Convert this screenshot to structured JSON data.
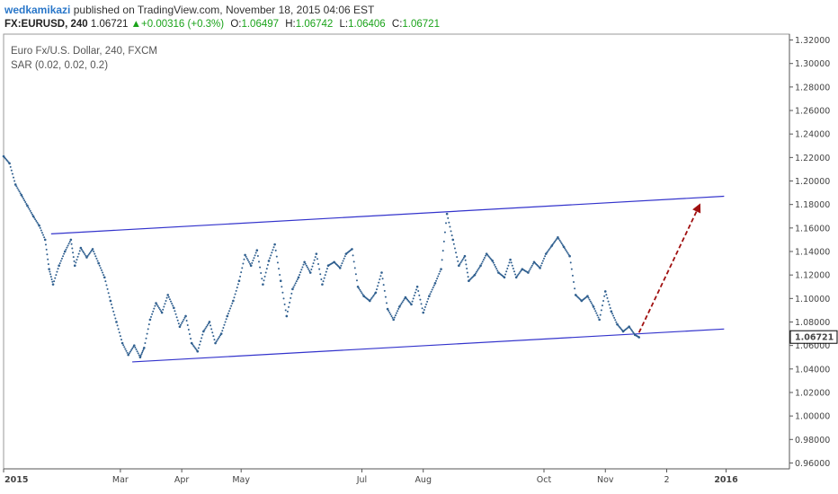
{
  "header": {
    "user": "wedkamikazi",
    "published_text": "published on TradingView.com, November 18, 2015 04:06 EST",
    "symbol": "FX:EURUSD, 240",
    "last": "1.06721",
    "change": "+0.00316 (+0.3%)",
    "o_label": "O:",
    "o_value": "1.06497",
    "h_label": "H:",
    "h_value": "1.06742",
    "l_label": "L:",
    "l_value": "1.06406",
    "c_label": "C:",
    "c_value": "1.06721"
  },
  "legend": {
    "instrument": "Euro Fx/U.S. Dollar, 240, FXCM",
    "indicator": "SAR (0.02, 0.02, 0.2)"
  },
  "colors": {
    "sar_dots": "#2f5f8f",
    "channel_lines": "#3333cc",
    "arrow": "#a01010",
    "last_price_tag": "#000000",
    "up_green": "#1aa31a"
  },
  "chart_data": {
    "type": "scatter",
    "series": [
      {
        "name": "SAR (0.02, 0.02, 0.2)",
        "x": [
          "2015-01-01",
          "2015-01-04",
          "2015-01-07",
          "2015-01-10",
          "2015-01-13",
          "2015-01-16",
          "2015-01-19",
          "2015-01-22",
          "2015-01-24",
          "2015-01-26",
          "2015-01-29",
          "2015-02-01",
          "2015-02-04",
          "2015-02-06",
          "2015-02-09",
          "2015-02-12",
          "2015-02-15",
          "2015-02-18",
          "2015-02-21",
          "2015-02-24",
          "2015-02-27",
          "2015-03-02",
          "2015-03-05",
          "2015-03-08",
          "2015-03-11",
          "2015-03-13",
          "2015-03-16",
          "2015-03-19",
          "2015-03-22",
          "2015-03-25",
          "2015-03-28",
          "2015-03-31",
          "2015-04-03",
          "2015-04-06",
          "2015-04-09",
          "2015-04-12",
          "2015-04-15",
          "2015-04-18",
          "2015-04-21",
          "2015-04-24",
          "2015-04-27",
          "2015-04-30",
          "2015-05-03",
          "2015-05-06",
          "2015-05-09",
          "2015-05-12",
          "2015-05-15",
          "2015-05-18",
          "2015-05-21",
          "2015-05-24",
          "2015-05-27",
          "2015-05-30",
          "2015-06-02",
          "2015-06-05",
          "2015-06-08",
          "2015-06-11",
          "2015-06-14",
          "2015-06-17",
          "2015-06-20",
          "2015-06-23",
          "2015-06-26",
          "2015-06-29",
          "2015-07-02",
          "2015-07-05",
          "2015-07-08",
          "2015-07-11",
          "2015-07-14",
          "2015-07-17",
          "2015-07-20",
          "2015-07-23",
          "2015-07-26",
          "2015-07-29",
          "2015-08-01",
          "2015-08-04",
          "2015-08-07",
          "2015-08-10",
          "2015-08-13",
          "2015-08-16",
          "2015-08-19",
          "2015-08-22",
          "2015-08-24",
          "2015-08-27",
          "2015-08-30",
          "2015-09-02",
          "2015-09-05",
          "2015-09-08",
          "2015-09-11",
          "2015-09-14",
          "2015-09-17",
          "2015-09-20",
          "2015-09-23",
          "2015-09-26",
          "2015-09-29",
          "2015-10-02",
          "2015-10-05",
          "2015-10-08",
          "2015-10-11",
          "2015-10-14",
          "2015-10-17",
          "2015-10-20",
          "2015-10-23",
          "2015-10-26",
          "2015-10-29",
          "2015-11-01",
          "2015-11-04",
          "2015-11-07",
          "2015-11-10",
          "2015-11-13",
          "2015-11-16",
          "2015-11-18"
        ],
        "y": [
          1.221,
          1.215,
          1.197,
          1.188,
          1.179,
          1.17,
          1.162,
          1.15,
          1.125,
          1.112,
          1.128,
          1.14,
          1.15,
          1.128,
          1.143,
          1.135,
          1.142,
          1.13,
          1.118,
          1.098,
          1.08,
          1.062,
          1.052,
          1.06,
          1.05,
          1.058,
          1.082,
          1.096,
          1.088,
          1.103,
          1.092,
          1.076,
          1.085,
          1.062,
          1.055,
          1.072,
          1.08,
          1.062,
          1.07,
          1.085,
          1.098,
          1.115,
          1.137,
          1.128,
          1.141,
          1.112,
          1.132,
          1.146,
          1.115,
          1.085,
          1.108,
          1.118,
          1.131,
          1.122,
          1.138,
          1.112,
          1.128,
          1.131,
          1.126,
          1.138,
          1.142,
          1.11,
          1.102,
          1.098,
          1.105,
          1.122,
          1.091,
          1.082,
          1.093,
          1.101,
          1.095,
          1.11,
          1.088,
          1.102,
          1.113,
          1.125,
          1.172,
          1.15,
          1.128,
          1.136,
          1.115,
          1.12,
          1.128,
          1.138,
          1.132,
          1.122,
          1.118,
          1.133,
          1.118,
          1.125,
          1.122,
          1.131,
          1.126,
          1.138,
          1.145,
          1.152,
          1.144,
          1.136,
          1.103,
          1.098,
          1.102,
          1.093,
          1.082,
          1.106,
          1.089,
          1.078,
          1.072,
          1.076,
          1.069,
          1.067
        ]
      }
    ],
    "channel": {
      "upper": {
        "x": [
          "2015-01-25",
          "2015-12-31"
        ],
        "y": [
          1.155,
          1.187
        ]
      },
      "lower": {
        "x": [
          "2015-03-07",
          "2015-12-31"
        ],
        "y": [
          1.046,
          1.074
        ]
      }
    },
    "projection_arrow": {
      "x": [
        "2015-11-18",
        "2015-12-19"
      ],
      "y": [
        1.071,
        1.181
      ]
    },
    "last_price": 1.06721,
    "y_ticks": [
      0.96,
      0.98,
      1.0,
      1.02,
      1.04,
      1.06,
      1.08,
      1.1,
      1.12,
      1.14,
      1.16,
      1.18,
      1.2,
      1.22,
      1.24,
      1.26,
      1.28,
      1.3,
      1.32
    ],
    "y_tick_labels": [
      "0.96000",
      "0.98000",
      "1.00000",
      "1.02000",
      "1.04000",
      "1.06000",
      "1.08000",
      "1.10000",
      "1.12000",
      "1.14000",
      "1.16000",
      "1.18000",
      "1.20000",
      "1.22000",
      "1.24000",
      "1.26000",
      "1.28000",
      "1.30000",
      "1.32000"
    ],
    "last_price_label": "1.06721",
    "x_ticks": [
      {
        "date": "2015-01-01",
        "label": "2015"
      },
      {
        "date": "2015-03-01",
        "label": "Mar"
      },
      {
        "date": "2015-04-01",
        "label": "Apr"
      },
      {
        "date": "2015-05-01",
        "label": "May"
      },
      {
        "date": "2015-07-01",
        "label": "Jul"
      },
      {
        "date": "2015-08-01",
        "label": "Aug"
      },
      {
        "date": "2015-10-01",
        "label": "Oct"
      },
      {
        "date": "2015-11-01",
        "label": "Nov"
      },
      {
        "date": "2015-12-02",
        "label": "2"
      },
      {
        "date": "2016-01-01",
        "label": "2016"
      }
    ],
    "ylim": [
      0.955,
      1.325
    ],
    "xlim": [
      "2015-01-01",
      "2016-02-02"
    ],
    "grid": false
  }
}
